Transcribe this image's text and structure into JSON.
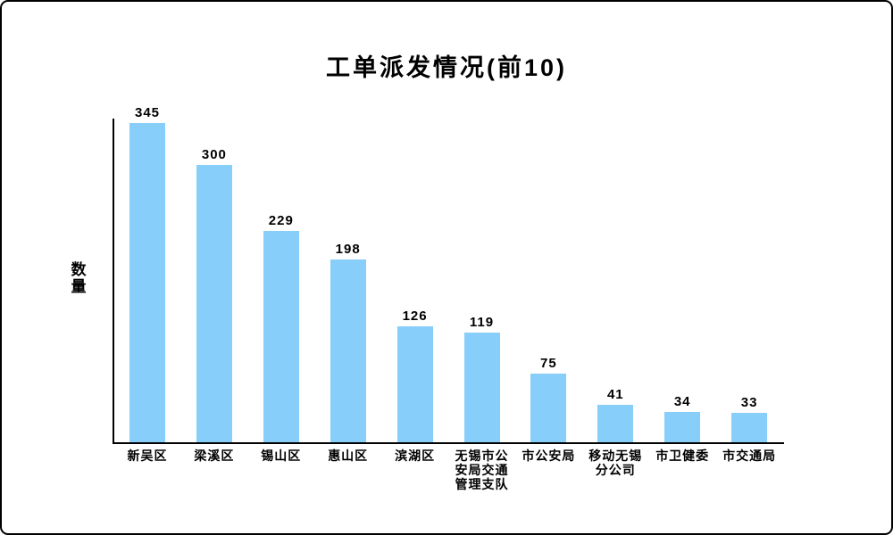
{
  "chart_data": {
    "type": "bar",
    "title": "工单派发情况(前10)",
    "xlabel": "",
    "ylabel": "数量",
    "categories": [
      "新吴区",
      "梁溪区",
      "锡山区",
      "惠山区",
      "滨湖区",
      "无锡市公安局交通管理支队",
      "市公安局",
      "移动无锡分公司",
      "市卫健委",
      "市交通局"
    ],
    "values": [
      345,
      300,
      229,
      198,
      126,
      119,
      75,
      41,
      34,
      33
    ],
    "value_labels_shown": true,
    "ylim": [
      0,
      360
    ],
    "grid": false,
    "legend_position": "none",
    "bar_color": "#87CEFA",
    "axis_color": "#000000",
    "text_color": "#000000",
    "background_color": "#FFFFFF"
  }
}
